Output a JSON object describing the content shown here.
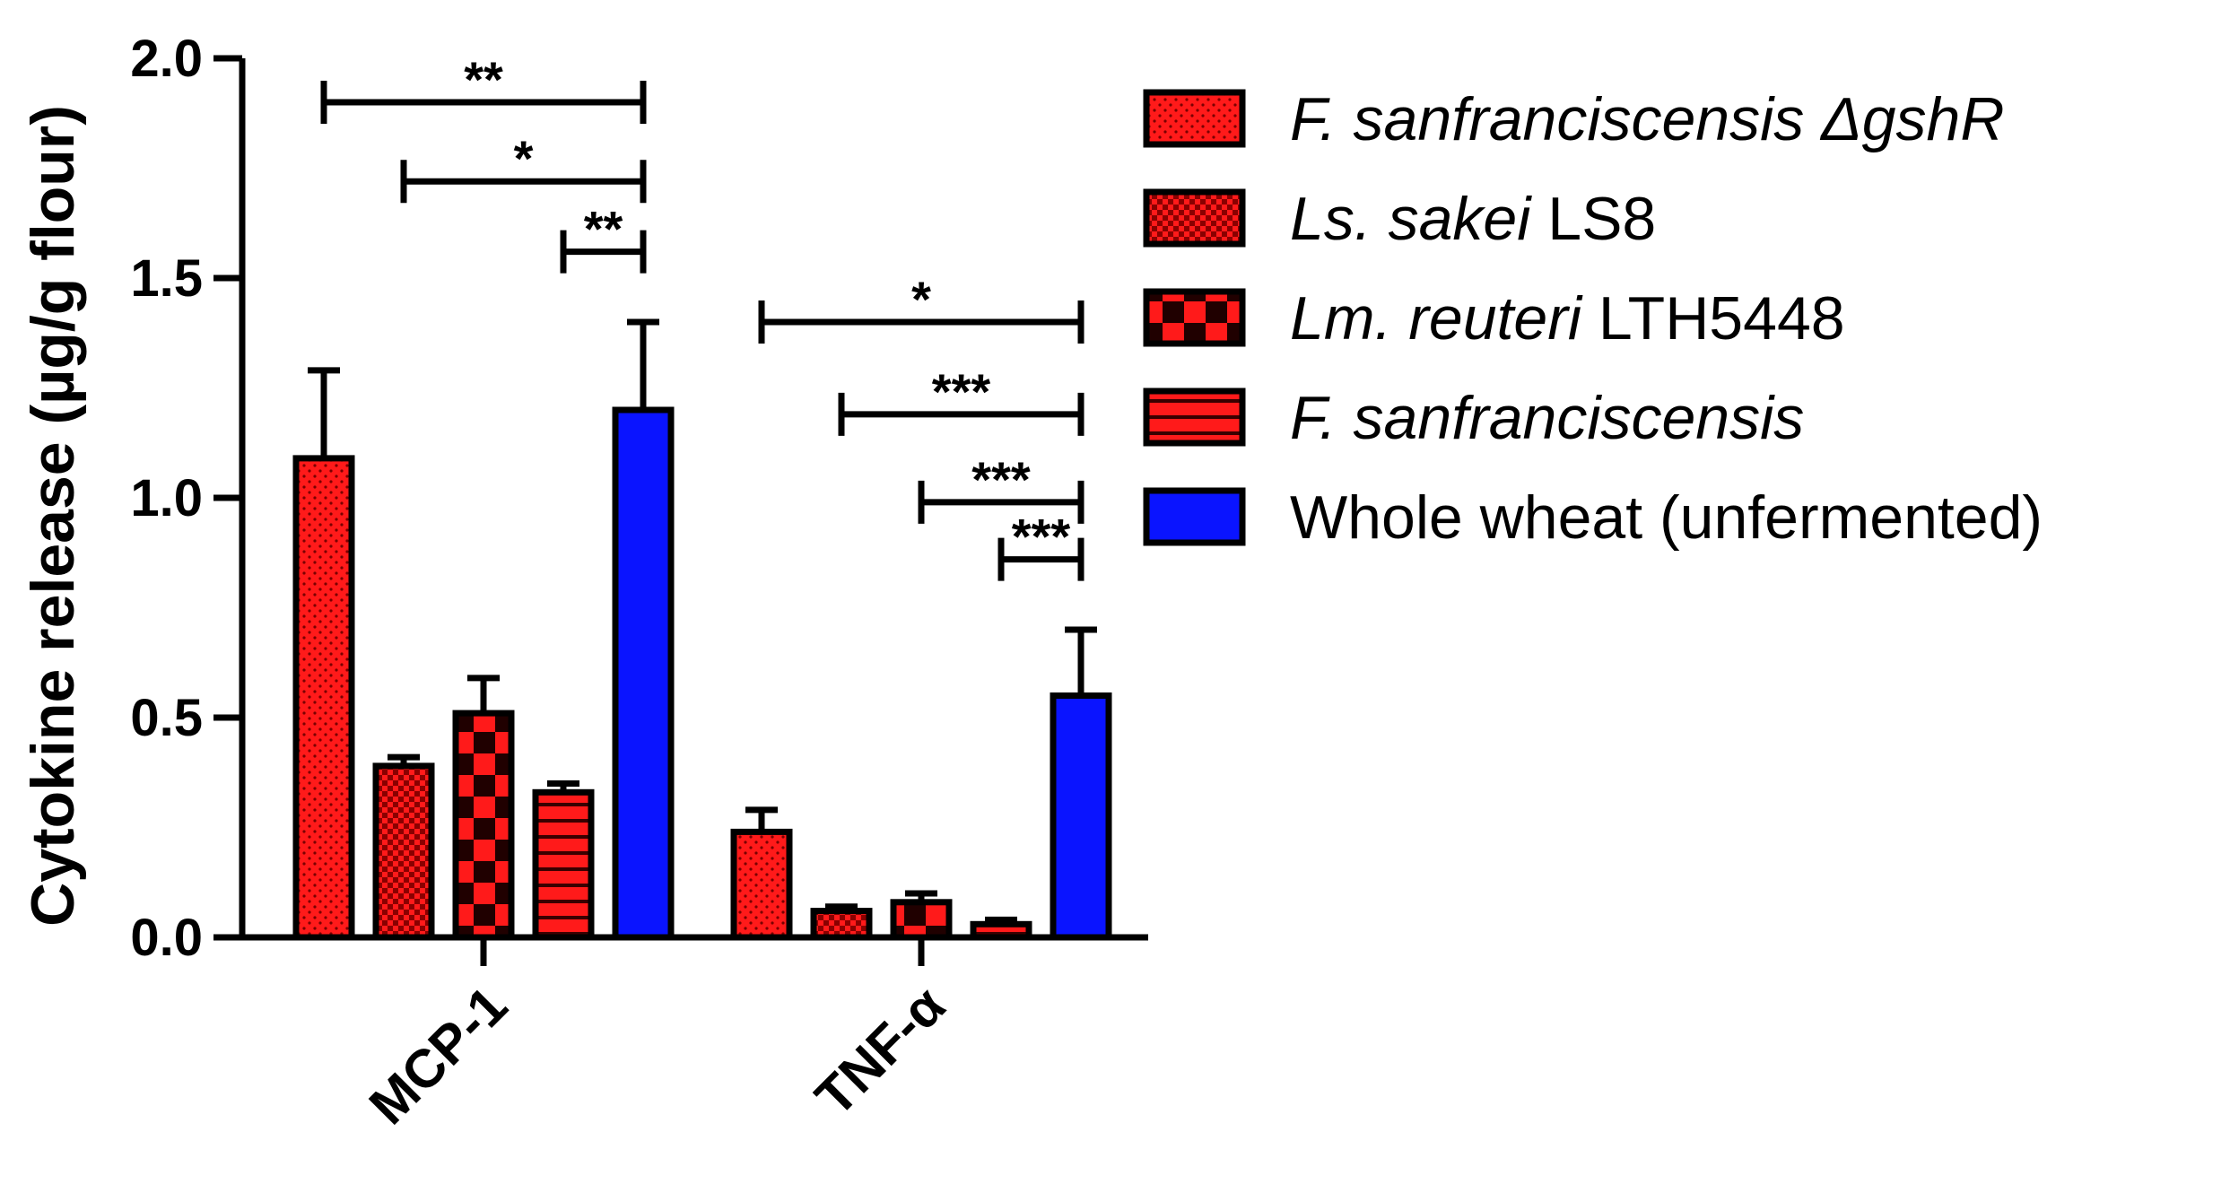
{
  "chart_data": {
    "type": "bar",
    "ylabel": "Cytokine release (µg/g flour)",
    "ylim": [
      0,
      2.0
    ],
    "yticks": [
      "0.0",
      "0.5",
      "1.0",
      "1.5",
      "2.0"
    ],
    "categories": [
      "MCP-1",
      "TNF-α"
    ],
    "series": [
      {
        "name_parts": [
          {
            "text": "F. sanfranciscensis ΔgshR",
            "italic": true
          }
        ],
        "color": "#ff1a1a",
        "pattern": "dots",
        "values": [
          1.09,
          0.24
        ],
        "errors": [
          0.2,
          0.05
        ]
      },
      {
        "name_parts": [
          {
            "text": "Ls. sakei",
            "italic": true
          },
          {
            "text": " LS8",
            "italic": false
          }
        ],
        "color": "#ff1a1a",
        "pattern": "fine-check",
        "values": [
          0.39,
          0.06
        ],
        "errors": [
          0.02,
          0.01
        ]
      },
      {
        "name_parts": [
          {
            "text": "Lm. reuteri",
            "italic": true
          },
          {
            "text": " LTH5448",
            "italic": false
          }
        ],
        "color": "#ff1a1a",
        "pattern": "big-check",
        "values": [
          0.51,
          0.08
        ],
        "errors": [
          0.08,
          0.02
        ]
      },
      {
        "name_parts": [
          {
            "text": "F. sanfranciscensis",
            "italic": true
          }
        ],
        "color": "#ff1a1a",
        "pattern": "stripes",
        "values": [
          0.33,
          0.03
        ],
        "errors": [
          0.02,
          0.01
        ]
      },
      {
        "name_parts": [
          {
            "text": "Whole wheat (unfermented)",
            "italic": false
          }
        ],
        "color": "#0a14ff",
        "pattern": "solid",
        "values": [
          1.2,
          0.55
        ],
        "errors": [
          0.2,
          0.15
        ]
      }
    ],
    "significance": [
      {
        "category": 0,
        "from_series": 0,
        "to_series": 4,
        "y": 1.9,
        "label": "**"
      },
      {
        "category": 0,
        "from_series": 1,
        "to_series": 4,
        "y": 1.72,
        "label": "*"
      },
      {
        "category": 0,
        "from_series": 3,
        "to_series": 4,
        "y": 1.56,
        "label": "**"
      },
      {
        "category": 1,
        "from_series": 0,
        "to_series": 4,
        "y": 1.4,
        "label": "*"
      },
      {
        "category": 1,
        "from_series": 1,
        "to_series": 4,
        "y": 1.19,
        "label": "***"
      },
      {
        "category": 1,
        "from_series": 2,
        "to_series": 4,
        "y": 0.99,
        "label": "***"
      },
      {
        "category": 1,
        "from_series": 3,
        "to_series": 4,
        "y": 0.86,
        "label": "***"
      }
    ],
    "legend_position": "right",
    "grid": false
  }
}
